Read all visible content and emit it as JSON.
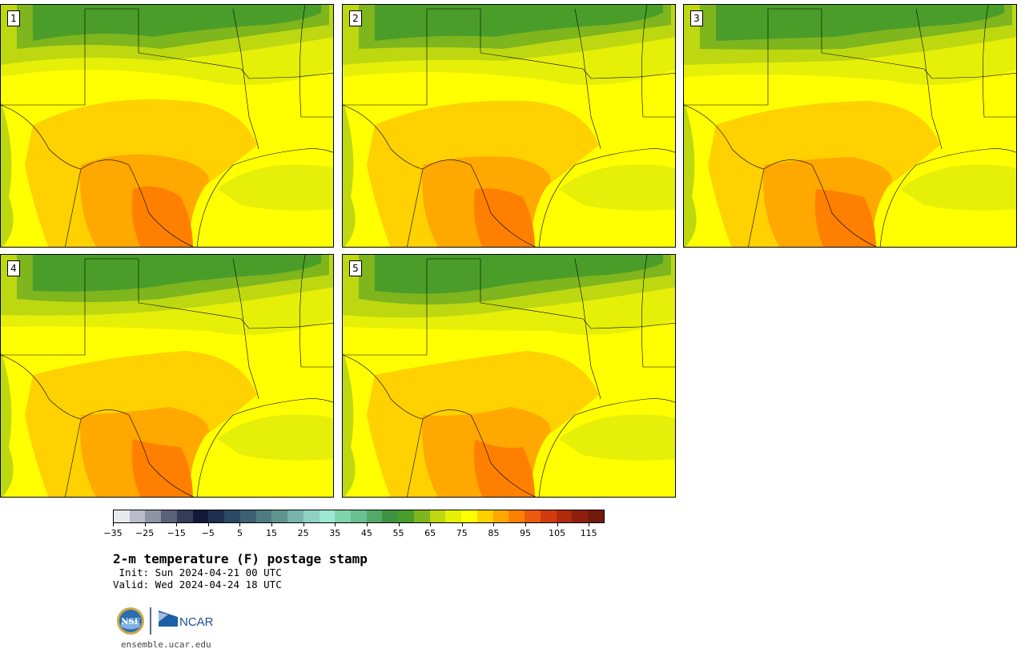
{
  "panels": [
    {
      "label": "1"
    },
    {
      "label": "2"
    },
    {
      "label": "3"
    },
    {
      "label": "4"
    },
    {
      "label": "5"
    }
  ],
  "colorbar": {
    "colors": [
      "#e8e9ef",
      "#b9bcc9",
      "#8e93a6",
      "#5b6178",
      "#353c58",
      "#131a38",
      "#1e3050",
      "#2c4862",
      "#3d6173",
      "#4f7b83",
      "#60948f",
      "#79b3ab",
      "#8ed1c3",
      "#9de8d3",
      "#7dd4ad",
      "#6bc091",
      "#54a969",
      "#3d9440",
      "#4b9d2a",
      "#7fb51d",
      "#bdd810",
      "#e6ef08",
      "#ffff00",
      "#ffd100",
      "#ffa800",
      "#ff8000",
      "#ec5a0e",
      "#d13c0d",
      "#b02a0c",
      "#8f1f0c",
      "#731a0c"
    ],
    "tick_labels": [
      "−35",
      "−25",
      "−15",
      "−5",
      "5",
      "15",
      "25",
      "35",
      "45",
      "55",
      "65",
      "75",
      "85",
      "95",
      "105",
      "115"
    ]
  },
  "title": "2-m temperature (F) postage stamp",
  "init_line": " Init: Sun 2024-04-21 00 UTC",
  "valid_line": "Valid: Wed 2024-04-24 18 UTC",
  "logos": {
    "nsf": "NSF",
    "ncar": "NCAR"
  },
  "site": "ensemble.ucar.edu"
}
